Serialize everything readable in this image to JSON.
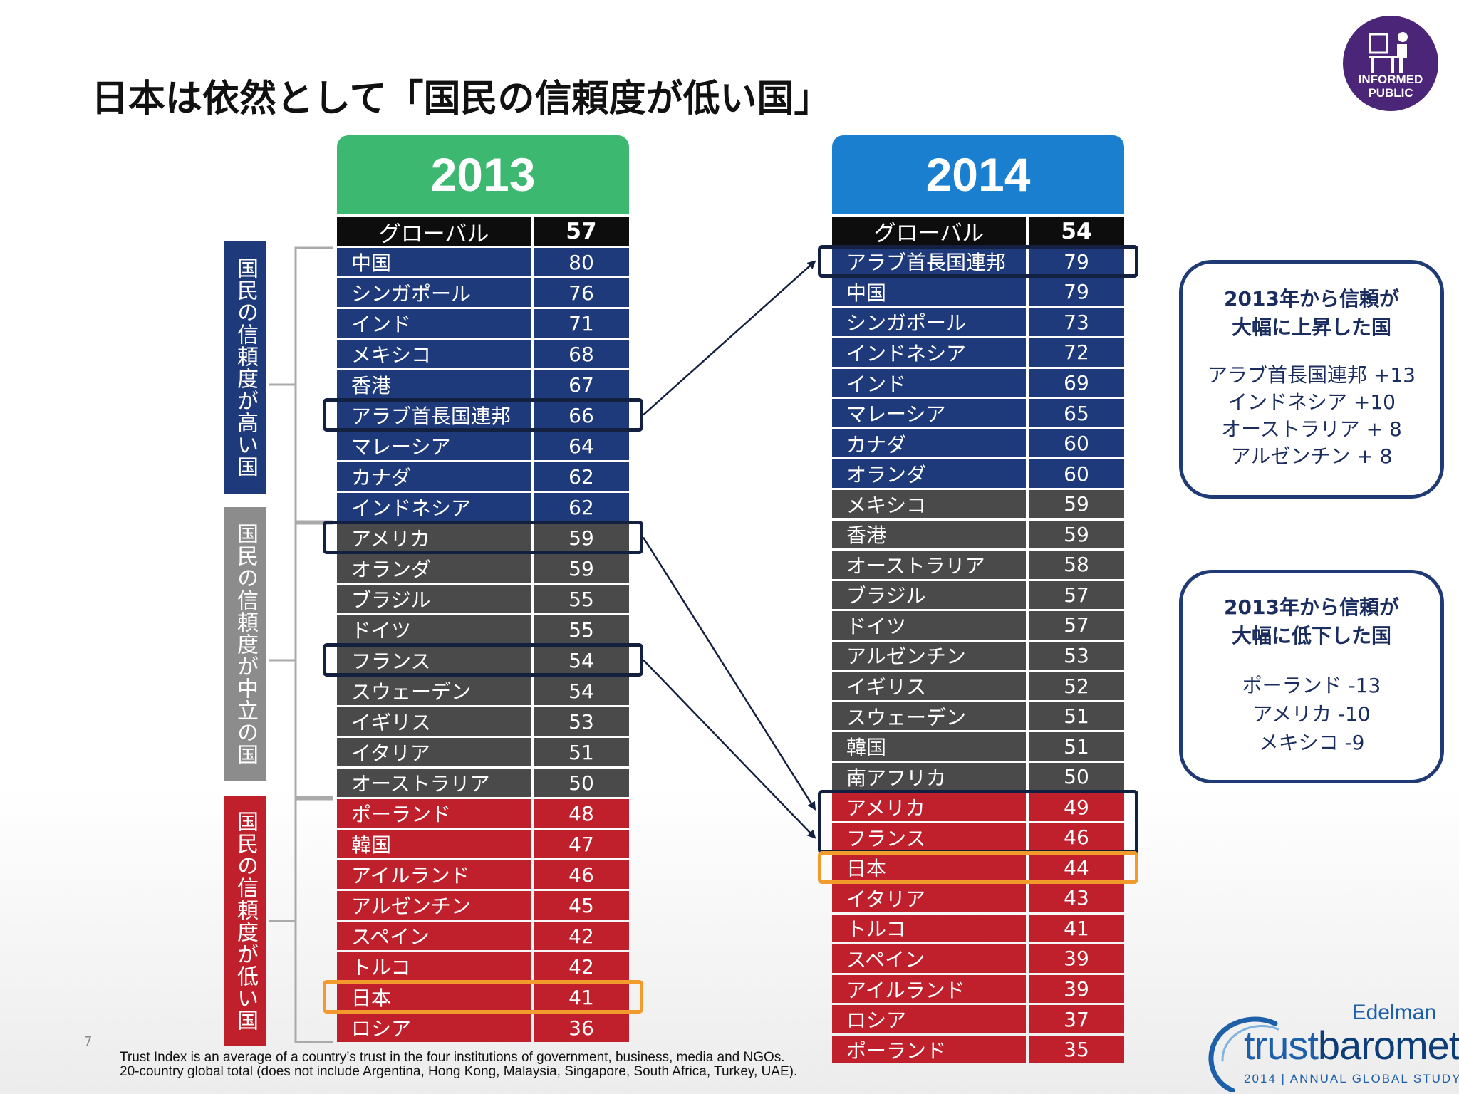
{
  "title": "日本は依然として「国民の信頼度が低い国」",
  "badge": {
    "line1": "INFORMED",
    "line2": "PUBLIC",
    "icon": "desk-person-icon"
  },
  "colors": {
    "high": "#1f3a7a",
    "neutral": "#4a4a4a",
    "low": "#c0202b",
    "header": "#0d0d0d",
    "head2013": "#3db871",
    "head2014": "#1b7fcf"
  },
  "group_labels": {
    "high": "国民の信頼度が高い国",
    "neutral": "国民の信頼度が中立の国",
    "low": "国民の信頼度が低い国"
  },
  "chart_data": {
    "type": "table",
    "tables": [
      {
        "year": "2013",
        "global_label": "グローバル",
        "global": 57,
        "rows": [
          {
            "name": "中国",
            "value": 80,
            "group": "high"
          },
          {
            "name": "シンガポール",
            "value": 76,
            "group": "high"
          },
          {
            "name": "インド",
            "value": 71,
            "group": "high"
          },
          {
            "name": "メキシコ",
            "value": 68,
            "group": "high"
          },
          {
            "name": "香港",
            "value": 67,
            "group": "high"
          },
          {
            "name": "アラブ首長国連邦",
            "value": 66,
            "group": "high"
          },
          {
            "name": "マレーシア",
            "value": 64,
            "group": "high"
          },
          {
            "name": "カナダ",
            "value": 62,
            "group": "high"
          },
          {
            "name": "インドネシア",
            "value": 62,
            "group": "high"
          },
          {
            "name": "アメリカ",
            "value": 59,
            "group": "neutral"
          },
          {
            "name": "オランダ",
            "value": 59,
            "group": "neutral"
          },
          {
            "name": "ブラジル",
            "value": 55,
            "group": "neutral"
          },
          {
            "name": "ドイツ",
            "value": 55,
            "group": "neutral"
          },
          {
            "name": "フランス",
            "value": 54,
            "group": "neutral"
          },
          {
            "name": "スウェーデン",
            "value": 54,
            "group": "neutral"
          },
          {
            "name": "イギリス",
            "value": 53,
            "group": "neutral"
          },
          {
            "name": "イタリア",
            "value": 51,
            "group": "neutral"
          },
          {
            "name": "オーストラリア",
            "value": 50,
            "group": "neutral"
          },
          {
            "name": "ポーランド",
            "value": 48,
            "group": "low"
          },
          {
            "name": "韓国",
            "value": 47,
            "group": "low"
          },
          {
            "name": "アイルランド",
            "value": 46,
            "group": "low"
          },
          {
            "name": "アルゼンチン",
            "value": 45,
            "group": "low"
          },
          {
            "name": "スペイン",
            "value": 42,
            "group": "low"
          },
          {
            "name": "トルコ",
            "value": 42,
            "group": "low"
          },
          {
            "name": "日本",
            "value": 41,
            "group": "low"
          },
          {
            "name": "ロシア",
            "value": 36,
            "group": "low"
          }
        ]
      },
      {
        "year": "2014",
        "global_label": "グローバル",
        "global": 54,
        "rows": [
          {
            "name": "アラブ首長国連邦",
            "value": 79,
            "group": "high"
          },
          {
            "name": "中国",
            "value": 79,
            "group": "high"
          },
          {
            "name": "シンガポール",
            "value": 73,
            "group": "high"
          },
          {
            "name": "インドネシア",
            "value": 72,
            "group": "high"
          },
          {
            "name": "インド",
            "value": 69,
            "group": "high"
          },
          {
            "name": "マレーシア",
            "value": 65,
            "group": "high"
          },
          {
            "name": "カナダ",
            "value": 60,
            "group": "high"
          },
          {
            "name": "オランダ",
            "value": 60,
            "group": "high"
          },
          {
            "name": "メキシコ",
            "value": 59,
            "group": "neutral"
          },
          {
            "name": "香港",
            "value": 59,
            "group": "neutral"
          },
          {
            "name": "オーストラリア",
            "value": 58,
            "group": "neutral"
          },
          {
            "name": "ブラジル",
            "value": 57,
            "group": "neutral"
          },
          {
            "name": "ドイツ",
            "value": 57,
            "group": "neutral"
          },
          {
            "name": "アルゼンチン",
            "value": 53,
            "group": "neutral"
          },
          {
            "name": "イギリス",
            "value": 52,
            "group": "neutral"
          },
          {
            "name": "スウェーデン",
            "value": 51,
            "group": "neutral"
          },
          {
            "name": "韓国",
            "value": 51,
            "group": "neutral"
          },
          {
            "name": "南アフリカ",
            "value": 50,
            "group": "neutral"
          },
          {
            "name": "アメリカ",
            "value": 49,
            "group": "low"
          },
          {
            "name": "フランス",
            "value": 46,
            "group": "low"
          },
          {
            "name": "日本",
            "value": 44,
            "group": "low"
          },
          {
            "name": "イタリア",
            "value": 43,
            "group": "low"
          },
          {
            "name": "トルコ",
            "value": 41,
            "group": "low"
          },
          {
            "name": "スペイン",
            "value": 39,
            "group": "low"
          },
          {
            "name": "アイルランド",
            "value": 39,
            "group": "low"
          },
          {
            "name": "ロシア",
            "value": 37,
            "group": "low"
          },
          {
            "name": "ポーランド",
            "value": 35,
            "group": "low"
          }
        ]
      }
    ],
    "highlights_2013": [
      "アラブ首長国連邦",
      "アメリカ",
      "フランス",
      "日本"
    ],
    "highlights_2014": [
      "アラブ首長国連邦",
      "アメリカ",
      "フランス",
      "日本"
    ]
  },
  "callouts": {
    "up": {
      "heading1": "2013年から信頼が",
      "heading2": "大幅に上昇した国",
      "items": [
        "アラブ首長国連邦 +13",
        "インドネシア +10",
        "オーストラリア + 8",
        "アルゼンチン + 8"
      ]
    },
    "down": {
      "heading1": "2013年から信頼が",
      "heading2": "大幅に低下した国",
      "items": [
        "ポーランド -13",
        "アメリカ -10",
        "メキシコ -9"
      ]
    }
  },
  "footnote": {
    "line1": "Trust Index is an average of a country’s trust in the four institutions of government, business, media and NGOs.",
    "line2": "20-country global total (does not include Argentina, Hong Kong, Malaysia, Singapore, South Africa, Turkey, UAE)."
  },
  "page_number": "7",
  "logo": {
    "brand": "Edelman",
    "name_light": "trust",
    "name_bold": "barometer",
    "subtitle": "2014 | ANNUAL GLOBAL STUDY"
  }
}
